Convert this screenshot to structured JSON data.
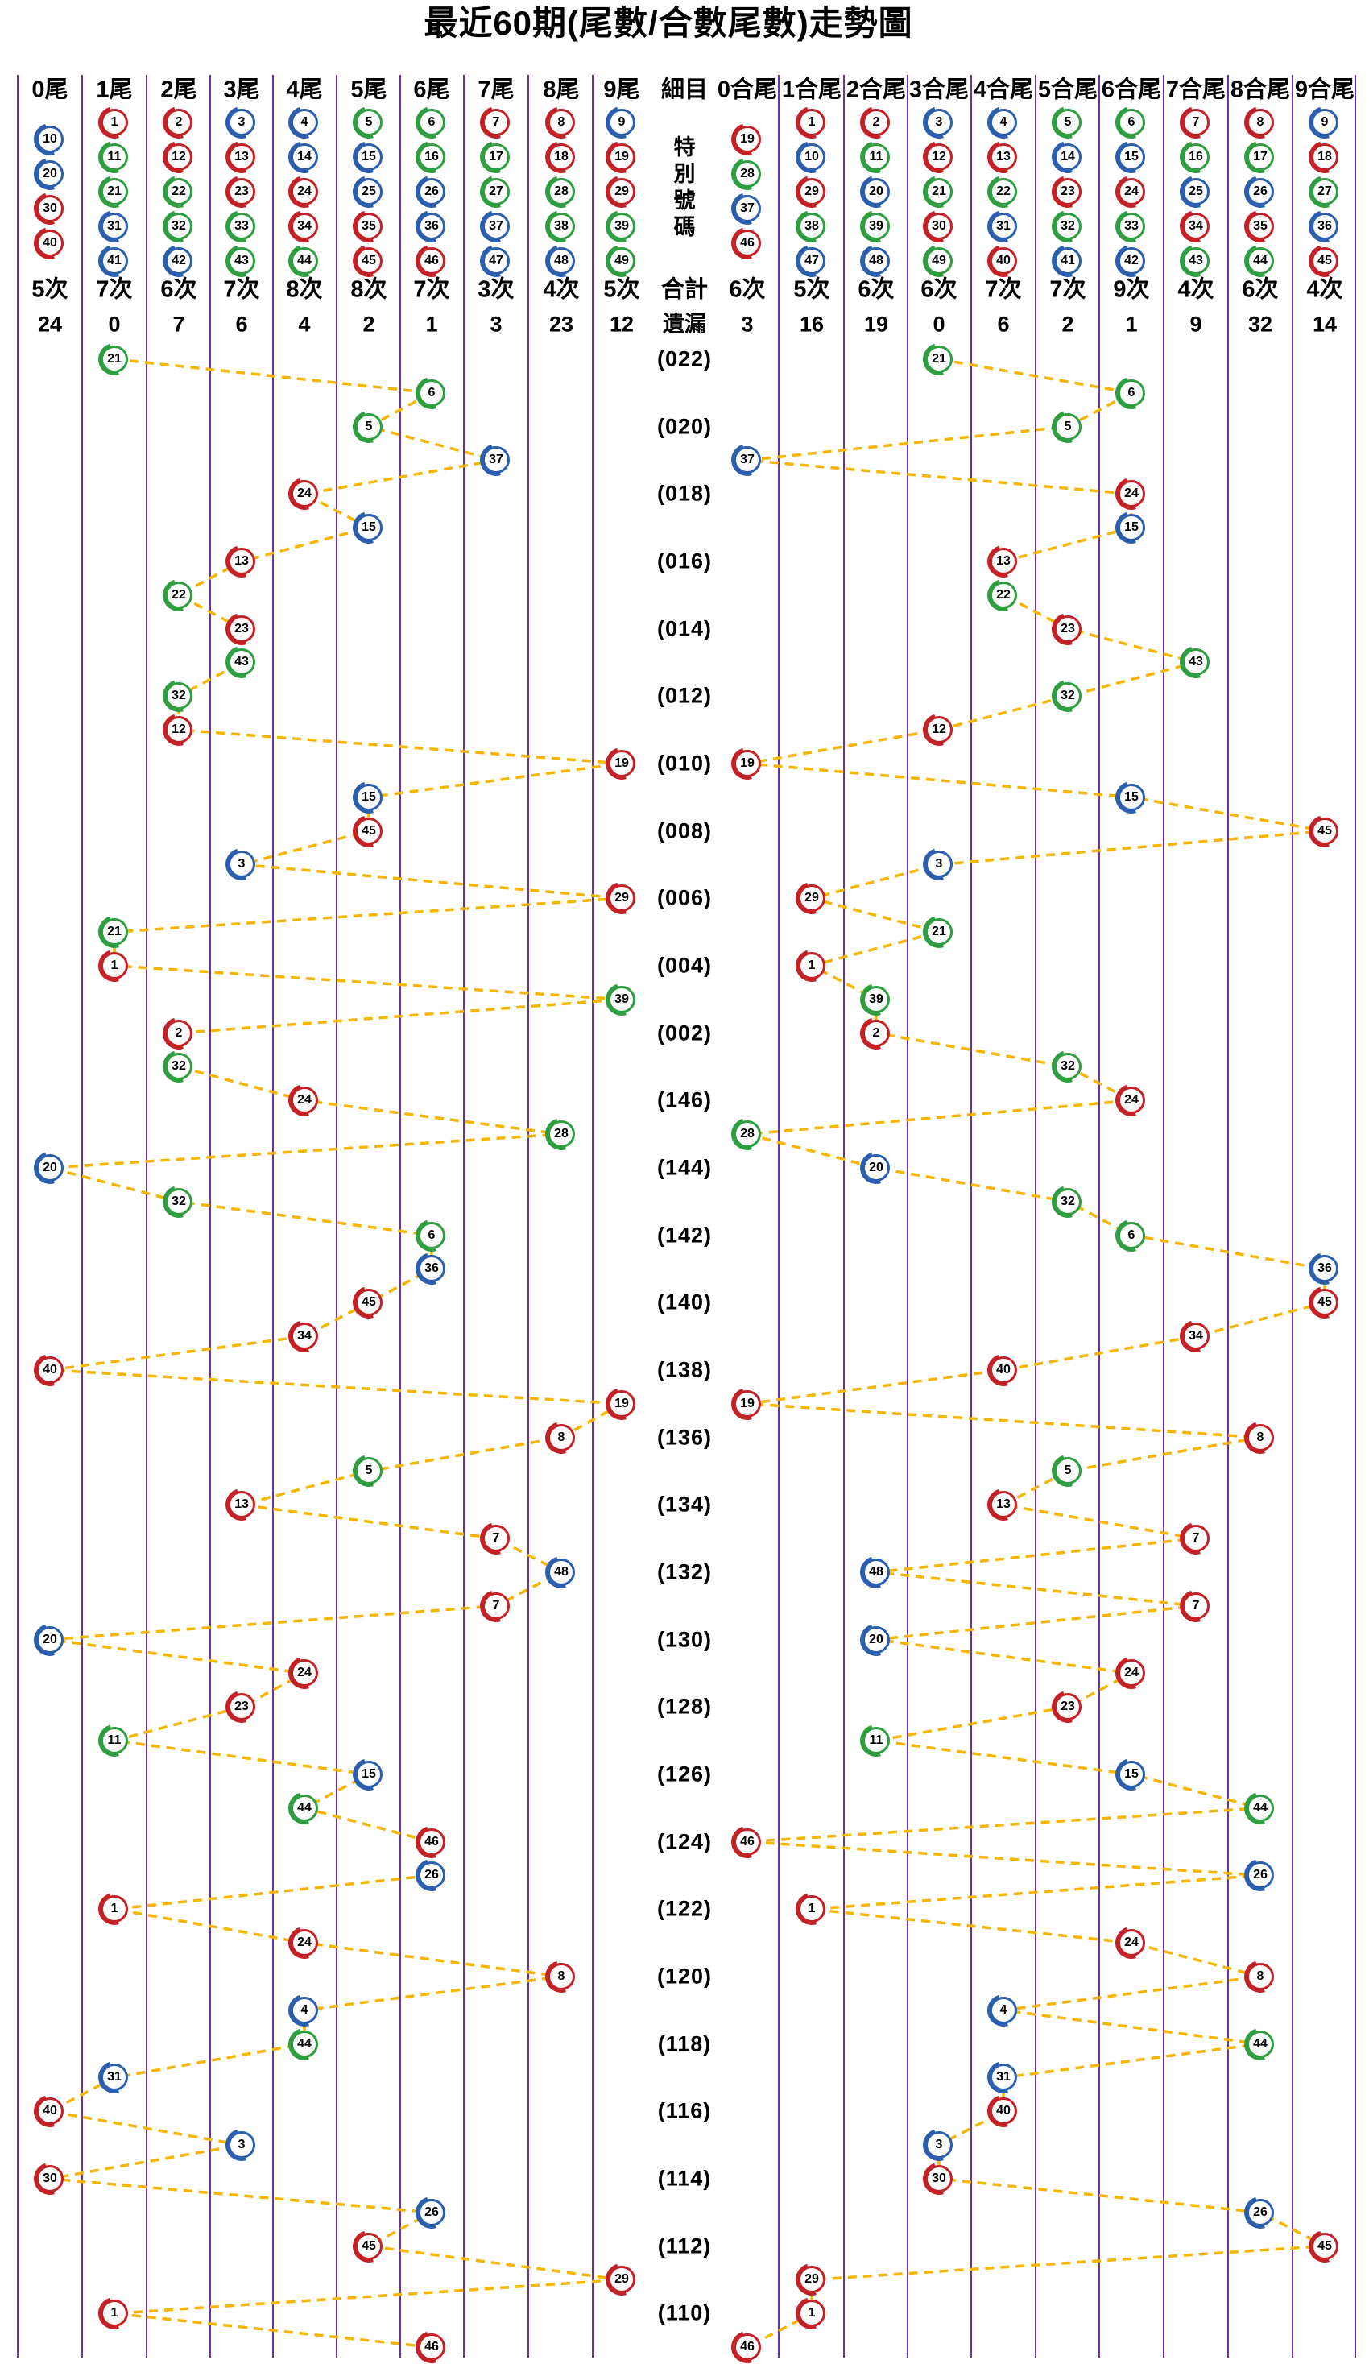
{
  "title": "最近60期(尾數/合數尾數)走勢圖",
  "colors": {
    "red": "#c42127",
    "blue": "#2b5fae",
    "green": "#2f9e41",
    "line": "#f6b600",
    "grid": "#7030a0",
    "text": "#000000",
    "ball_groups": {
      "red": [
        1,
        2,
        7,
        8,
        12,
        13,
        18,
        19,
        23,
        24,
        29,
        30,
        34,
        35,
        40,
        45,
        46
      ],
      "blue": [
        3,
        4,
        9,
        10,
        14,
        15,
        20,
        25,
        26,
        31,
        36,
        37,
        41,
        42,
        47,
        48
      ],
      "green": [
        5,
        6,
        11,
        16,
        17,
        21,
        22,
        27,
        28,
        32,
        33,
        38,
        39,
        43,
        44,
        49
      ]
    }
  },
  "chart_data": {
    "type": "scatter",
    "title": "最近60期(尾數/合數尾數)走勢圖",
    "legend_position": "none",
    "grid": "vertical-only",
    "detail_column": {
      "header": "細目",
      "ball_area_label": "特別號碼",
      "count_label": "合計",
      "miss_label": "遺漏"
    },
    "tail_columns": [
      {
        "label": "0尾",
        "numbers": [
          10,
          20,
          30,
          40
        ],
        "count": "5次",
        "miss": "24"
      },
      {
        "label": "1尾",
        "numbers": [
          1,
          11,
          21,
          31,
          41
        ],
        "count": "7次",
        "miss": "0"
      },
      {
        "label": "2尾",
        "numbers": [
          2,
          12,
          22,
          32,
          42
        ],
        "count": "6次",
        "miss": "7"
      },
      {
        "label": "3尾",
        "numbers": [
          3,
          13,
          23,
          33,
          43
        ],
        "count": "7次",
        "miss": "6"
      },
      {
        "label": "4尾",
        "numbers": [
          4,
          14,
          24,
          34,
          44
        ],
        "count": "8次",
        "miss": "4"
      },
      {
        "label": "5尾",
        "numbers": [
          5,
          15,
          25,
          35,
          45
        ],
        "count": "8次",
        "miss": "2"
      },
      {
        "label": "6尾",
        "numbers": [
          6,
          16,
          26,
          36,
          46
        ],
        "count": "7次",
        "miss": "1"
      },
      {
        "label": "7尾",
        "numbers": [
          7,
          17,
          27,
          37,
          47
        ],
        "count": "3次",
        "miss": "3"
      },
      {
        "label": "8尾",
        "numbers": [
          8,
          18,
          28,
          38,
          48
        ],
        "count": "4次",
        "miss": "23"
      },
      {
        "label": "9尾",
        "numbers": [
          9,
          19,
          29,
          39,
          49
        ],
        "count": "5次",
        "miss": "12"
      }
    ],
    "sum_columns": [
      {
        "label": "0合尾",
        "numbers": [
          19,
          28,
          37,
          46
        ],
        "count": "6次",
        "miss": "3"
      },
      {
        "label": "1合尾",
        "numbers": [
          1,
          10,
          29,
          38,
          47
        ],
        "count": "5次",
        "miss": "16"
      },
      {
        "label": "2合尾",
        "numbers": [
          2,
          11,
          20,
          39,
          48
        ],
        "count": "6次",
        "miss": "19"
      },
      {
        "label": "3合尾",
        "numbers": [
          3,
          12,
          21,
          30,
          49
        ],
        "count": "6次",
        "miss": "0"
      },
      {
        "label": "4合尾",
        "numbers": [
          4,
          13,
          22,
          31,
          40
        ],
        "count": "7次",
        "miss": "6"
      },
      {
        "label": "5合尾",
        "numbers": [
          5,
          14,
          23,
          32,
          41
        ],
        "count": "7次",
        "miss": "2"
      },
      {
        "label": "6合尾",
        "numbers": [
          6,
          15,
          24,
          33,
          42
        ],
        "count": "9次",
        "miss": "1"
      },
      {
        "label": "7合尾",
        "numbers": [
          7,
          16,
          25,
          34,
          43
        ],
        "count": "4次",
        "miss": "9"
      },
      {
        "label": "8合尾",
        "numbers": [
          8,
          17,
          26,
          35,
          44
        ],
        "count": "6次",
        "miss": "32"
      },
      {
        "label": "9合尾",
        "numbers": [
          9,
          18,
          27,
          36,
          45
        ],
        "count": "4次",
        "miss": "14"
      }
    ],
    "rows": [
      {
        "period": "(022)",
        "special": 21
      },
      {
        "period": "",
        "special": 6
      },
      {
        "period": "(020)",
        "special": 5
      },
      {
        "period": "",
        "special": 37
      },
      {
        "period": "(018)",
        "special": 24
      },
      {
        "period": "",
        "special": 15
      },
      {
        "period": "(016)",
        "special": 13
      },
      {
        "period": "",
        "special": 22
      },
      {
        "period": "(014)",
        "special": 23
      },
      {
        "period": "",
        "special": 43
      },
      {
        "period": "(012)",
        "special": 32
      },
      {
        "period": "",
        "special": 12
      },
      {
        "period": "(010)",
        "special": 19
      },
      {
        "period": "",
        "special": 15
      },
      {
        "period": "(008)",
        "special": 45
      },
      {
        "period": "",
        "special": 3
      },
      {
        "period": "(006)",
        "special": 29
      },
      {
        "period": "",
        "special": 21
      },
      {
        "period": "(004)",
        "special": 1
      },
      {
        "period": "",
        "special": 39
      },
      {
        "period": "(002)",
        "special": 2
      },
      {
        "period": "",
        "special": 32
      },
      {
        "period": "(146)",
        "special": 24
      },
      {
        "period": "",
        "special": 28
      },
      {
        "period": "(144)",
        "special": 20
      },
      {
        "period": "",
        "special": 32
      },
      {
        "period": "(142)",
        "special": 6
      },
      {
        "period": "",
        "special": 36
      },
      {
        "period": "(140)",
        "special": 45
      },
      {
        "period": "",
        "special": 34
      },
      {
        "period": "(138)",
        "special": 40
      },
      {
        "period": "",
        "special": 19
      },
      {
        "period": "(136)",
        "special": 8
      },
      {
        "period": "",
        "special": 5
      },
      {
        "period": "(134)",
        "special": 13
      },
      {
        "period": "",
        "special": 7
      },
      {
        "period": "(132)",
        "special": 48
      },
      {
        "period": "",
        "special": 7
      },
      {
        "period": "(130)",
        "special": 20
      },
      {
        "period": "",
        "special": 24
      },
      {
        "period": "(128)",
        "special": 23
      },
      {
        "period": "",
        "special": 11
      },
      {
        "period": "(126)",
        "special": 15
      },
      {
        "period": "",
        "special": 44
      },
      {
        "period": "(124)",
        "special": 46
      },
      {
        "period": "",
        "special": 26
      },
      {
        "period": "(122)",
        "special": 1
      },
      {
        "period": "",
        "special": 24
      },
      {
        "period": "(120)",
        "special": 8
      },
      {
        "period": "",
        "special": 4
      },
      {
        "period": "(118)",
        "special": 44
      },
      {
        "period": "",
        "special": 31
      },
      {
        "period": "(116)",
        "special": 40
      },
      {
        "period": "",
        "special": 3
      },
      {
        "period": "(114)",
        "special": 30
      },
      {
        "period": "",
        "special": 26
      },
      {
        "period": "(112)",
        "special": 45
      },
      {
        "period": "",
        "special": 29
      },
      {
        "period": "(110)",
        "special": 1
      },
      {
        "period": "",
        "special": 46
      }
    ]
  }
}
